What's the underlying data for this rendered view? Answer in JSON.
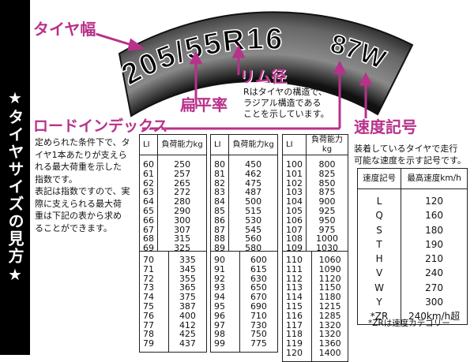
{
  "sidebar_title": "★タイヤサイズの見方★",
  "tire": {
    "size": "205/55R16",
    "service": "87W",
    "color": "#5a5a5a"
  },
  "accent_color": "#b8318a",
  "labels": {
    "width": "タイヤ幅",
    "aspect": "扁平率",
    "rim": "リム径",
    "rim_desc": [
      "Rはタイヤの構造で、",
      "ラジアル構造である",
      "ことを示しています。"
    ],
    "load_index": "ロードインデックス",
    "speed": "速度記号"
  },
  "load_index_desc": [
    "定められた条件下で、タ",
    "イヤ1本あたりが支えら",
    "れる最大荷重を示した",
    "指数です。",
    "表記は指数ですので、実",
    "際に支えられる最大荷",
    "重は下記の表から求め",
    "ることができます。"
  ],
  "load_table": {
    "headers": [
      "LI",
      "負荷能力kg"
    ],
    "columns": [
      [
        [
          "60",
          "250"
        ],
        [
          "61",
          "257"
        ],
        [
          "62",
          "265"
        ],
        [
          "63",
          "272"
        ],
        [
          "64",
          "280"
        ],
        [
          "65",
          "290"
        ],
        [
          "66",
          "300"
        ],
        [
          "67",
          "307"
        ],
        [
          "68",
          "315"
        ],
        [
          "69",
          "325"
        ]
      ],
      [
        [
          "80",
          "450"
        ],
        [
          "81",
          "462"
        ],
        [
          "82",
          "475"
        ],
        [
          "83",
          "487"
        ],
        [
          "84",
          "500"
        ],
        [
          "85",
          "515"
        ],
        [
          "86",
          "530"
        ],
        [
          "87",
          "545"
        ],
        [
          "88",
          "560"
        ],
        [
          "89",
          "580"
        ]
      ],
      [
        [
          "100",
          "800"
        ],
        [
          "101",
          "825"
        ],
        [
          "102",
          "850"
        ],
        [
          "103",
          "875"
        ],
        [
          "104",
          "900"
        ],
        [
          "105",
          "925"
        ],
        [
          "106",
          "950"
        ],
        [
          "107",
          "975"
        ],
        [
          "108",
          "1000"
        ],
        [
          "109",
          "1030"
        ]
      ],
      [
        [
          "70",
          "335"
        ],
        [
          "71",
          "345"
        ],
        [
          "72",
          "355"
        ],
        [
          "73",
          "365"
        ],
        [
          "74",
          "375"
        ],
        [
          "75",
          "387"
        ],
        [
          "76",
          "400"
        ],
        [
          "77",
          "412"
        ],
        [
          "78",
          "425"
        ],
        [
          "79",
          "437"
        ]
      ],
      [
        [
          "90",
          "600"
        ],
        [
          "91",
          "615"
        ],
        [
          "92",
          "630"
        ],
        [
          "93",
          "650"
        ],
        [
          "94",
          "670"
        ],
        [
          "95",
          "690"
        ],
        [
          "96",
          "710"
        ],
        [
          "97",
          "730"
        ],
        [
          "98",
          "750"
        ],
        [
          "99",
          "775"
        ]
      ],
      [
        [
          "110",
          "1060"
        ],
        [
          "111",
          "1090"
        ],
        [
          "112",
          "1120"
        ],
        [
          "113",
          "1150"
        ],
        [
          "114",
          "1180"
        ],
        [
          "115",
          "1215"
        ],
        [
          "116",
          "1285"
        ],
        [
          "117",
          "1320"
        ],
        [
          "118",
          "1320"
        ],
        [
          "119",
          "1360"
        ],
        [
          "120",
          "1400"
        ]
      ]
    ]
  },
  "speed_desc": [
    "装着しているタイヤで走行",
    "可能な速度を示す記号です。"
  ],
  "speed_table": {
    "headers": [
      "速度記号",
      "最高速度km/h"
    ],
    "rows": [
      [
        "L",
        "120"
      ],
      [
        "Q",
        "160"
      ],
      [
        "S",
        "180"
      ],
      [
        "T",
        "190"
      ],
      [
        "H",
        "210"
      ],
      [
        "V",
        "240"
      ],
      [
        "W",
        "270"
      ],
      [
        "Y",
        "300"
      ],
      [
        "*ZR",
        "240km/h超"
      ]
    ]
  },
  "speed_note": "*ZRは速度カテゴリー"
}
